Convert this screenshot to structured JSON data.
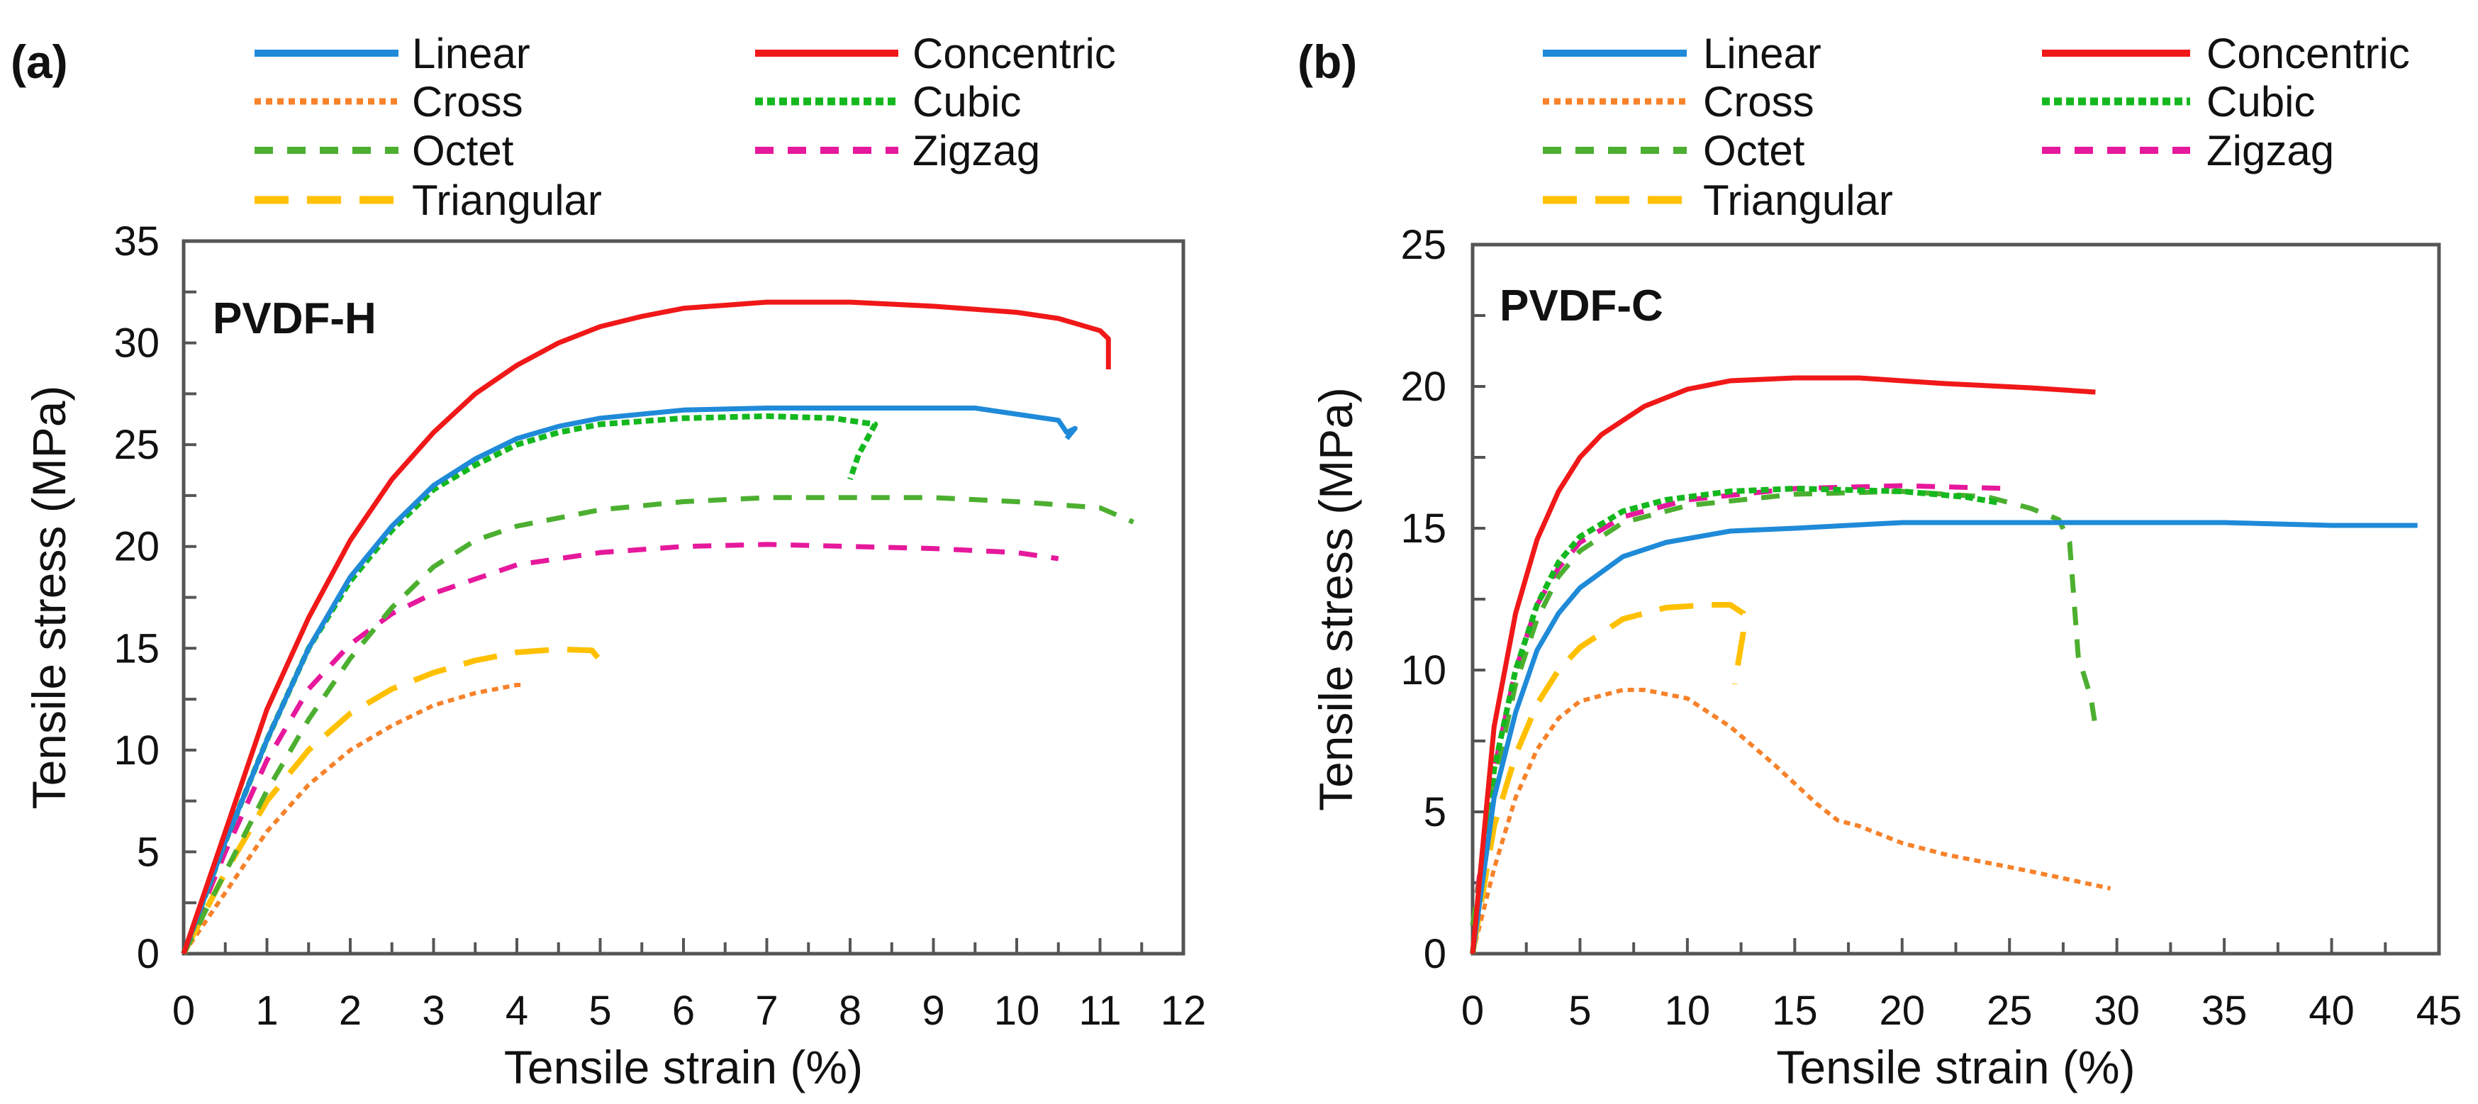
{
  "chart_data": [
    {
      "type": "line",
      "panel_label": "(a)",
      "title": "PVDF-H",
      "xlabel": "Tensile strain (%)",
      "ylabel": "Tensile stress (MPa)",
      "xlim": [
        0,
        12
      ],
      "ylim": [
        0,
        35
      ],
      "xticks": [
        0,
        1,
        2,
        3,
        4,
        5,
        6,
        7,
        8,
        9,
        10,
        11,
        12
      ],
      "yticks": [
        0,
        5,
        10,
        15,
        20,
        25,
        30,
        35
      ],
      "grid": false,
      "legend_placement": "top",
      "series": [
        {
          "name": "Linear",
          "color": "#1f8ad8",
          "style": "solid",
          "points": [
            [
              0,
              0
            ],
            [
              0.5,
              5.5
            ],
            [
              1,
              10.5
            ],
            [
              1.5,
              15
            ],
            [
              2,
              18.5
            ],
            [
              2.5,
              21
            ],
            [
              3,
              23
            ],
            [
              3.5,
              24.3
            ],
            [
              4,
              25.3
            ],
            [
              4.5,
              25.9
            ],
            [
              5,
              26.3
            ],
            [
              6,
              26.7
            ],
            [
              7,
              26.8
            ],
            [
              8,
              26.8
            ],
            [
              9.5,
              26.8
            ],
            [
              10,
              26.5
            ],
            [
              10.5,
              26.2
            ],
            [
              10.6,
              25.6
            ],
            [
              10.7,
              25.8
            ],
            [
              10.6,
              25.3
            ]
          ]
        },
        {
          "name": "Concentric",
          "color": "#f01818",
          "style": "solid",
          "points": [
            [
              0,
              0
            ],
            [
              0.5,
              6
            ],
            [
              1,
              12
            ],
            [
              1.5,
              16.5
            ],
            [
              2,
              20.3
            ],
            [
              2.5,
              23.3
            ],
            [
              3,
              25.6
            ],
            [
              3.5,
              27.5
            ],
            [
              4,
              28.9
            ],
            [
              4.5,
              30
            ],
            [
              5,
              30.8
            ],
            [
              5.5,
              31.3
            ],
            [
              6,
              31.7
            ],
            [
              7,
              32
            ],
            [
              8,
              32
            ],
            [
              9,
              31.8
            ],
            [
              10,
              31.5
            ],
            [
              10.5,
              31.2
            ],
            [
              11,
              30.6
            ],
            [
              11.1,
              30.2
            ],
            [
              11.1,
              28.7
            ]
          ]
        },
        {
          "name": "Cross",
          "color": "#f7822a",
          "style": "dot",
          "points": [
            [
              0,
              0
            ],
            [
              0.5,
              3
            ],
            [
              1,
              6
            ],
            [
              1.5,
              8.3
            ],
            [
              2,
              10
            ],
            [
              2.5,
              11.2
            ],
            [
              3,
              12.2
            ],
            [
              3.5,
              12.8
            ],
            [
              4,
              13.2
            ],
            [
              4.1,
              13.2
            ]
          ]
        },
        {
          "name": "Cubic",
          "color": "#14b81e",
          "style": "densedot",
          "points": [
            [
              0,
              0
            ],
            [
              0.5,
              5.5
            ],
            [
              1,
              10.5
            ],
            [
              1.5,
              15
            ],
            [
              2,
              18.3
            ],
            [
              2.5,
              20.8
            ],
            [
              3,
              22.8
            ],
            [
              3.5,
              24
            ],
            [
              4,
              25
            ],
            [
              4.5,
              25.6
            ],
            [
              5,
              26
            ],
            [
              6,
              26.3
            ],
            [
              7,
              26.4
            ],
            [
              7.8,
              26.3
            ],
            [
              8.3,
              26
            ],
            [
              8.1,
              24.5
            ],
            [
              8,
              23.3
            ]
          ]
        },
        {
          "name": "Octet",
          "color": "#4caf30",
          "style": "dash",
          "points": [
            [
              0,
              0
            ],
            [
              0.5,
              4
            ],
            [
              1,
              8
            ],
            [
              1.5,
              11.5
            ],
            [
              2,
              14.5
            ],
            [
              2.5,
              17
            ],
            [
              3,
              19
            ],
            [
              3.5,
              20.3
            ],
            [
              4,
              21
            ],
            [
              5,
              21.8
            ],
            [
              6,
              22.2
            ],
            [
              7,
              22.4
            ],
            [
              8,
              22.4
            ],
            [
              9,
              22.4
            ],
            [
              10,
              22.2
            ],
            [
              11,
              21.9
            ],
            [
              11.4,
              21.2
            ]
          ]
        },
        {
          "name": "Zigzag",
          "color": "#e6189c",
          "style": "dash",
          "points": [
            [
              0,
              0
            ],
            [
              0.5,
              5
            ],
            [
              1,
              9.5
            ],
            [
              1.5,
              13
            ],
            [
              2,
              15.2
            ],
            [
              2.5,
              16.7
            ],
            [
              3,
              17.7
            ],
            [
              4,
              19.1
            ],
            [
              5,
              19.7
            ],
            [
              6,
              20
            ],
            [
              7,
              20.1
            ],
            [
              8,
              20
            ],
            [
              9,
              19.9
            ],
            [
              10,
              19.7
            ],
            [
              10.5,
              19.4
            ]
          ]
        },
        {
          "name": "Triangular",
          "color": "#ffc000",
          "style": "longdash",
          "points": [
            [
              0,
              0
            ],
            [
              0.5,
              4
            ],
            [
              1,
              7.5
            ],
            [
              1.5,
              10
            ],
            [
              2,
              11.8
            ],
            [
              2.5,
              13
            ],
            [
              3,
              13.8
            ],
            [
              3.5,
              14.4
            ],
            [
              4,
              14.8
            ],
            [
              4.5,
              14.95
            ],
            [
              4.9,
              14.9
            ],
            [
              5,
              14.4
            ]
          ]
        }
      ]
    },
    {
      "type": "line",
      "panel_label": "(b)",
      "title": "PVDF-C",
      "xlabel": "Tensile strain (%)",
      "ylabel": "Tensile stress (MPa)",
      "xlim": [
        0,
        45
      ],
      "ylim": [
        0,
        25
      ],
      "xticks": [
        0,
        5,
        10,
        15,
        20,
        25,
        30,
        35,
        40,
        45
      ],
      "yticks": [
        0,
        5,
        10,
        15,
        20,
        25
      ],
      "grid": false,
      "legend_placement": "top",
      "series": [
        {
          "name": "Linear",
          "color": "#1f8ad8",
          "style": "solid",
          "points": [
            [
              0,
              0
            ],
            [
              1,
              5.5
            ],
            [
              2,
              8.5
            ],
            [
              3,
              10.7
            ],
            [
              4,
              12
            ],
            [
              5,
              12.9
            ],
            [
              7,
              14
            ],
            [
              9,
              14.5
            ],
            [
              12,
              14.9
            ],
            [
              15,
              15
            ],
            [
              20,
              15.2
            ],
            [
              30,
              15.2
            ],
            [
              35,
              15.2
            ],
            [
              40,
              15.1
            ],
            [
              44,
              15.1
            ]
          ]
        },
        {
          "name": "Concentric",
          "color": "#f01818",
          "style": "solid",
          "points": [
            [
              0,
              0
            ],
            [
              1,
              8
            ],
            [
              2,
              12
            ],
            [
              3,
              14.6
            ],
            [
              4,
              16.3
            ],
            [
              5,
              17.5
            ],
            [
              6,
              18.3
            ],
            [
              8,
              19.3
            ],
            [
              10,
              19.9
            ],
            [
              12,
              20.2
            ],
            [
              15,
              20.3
            ],
            [
              18,
              20.3
            ],
            [
              22,
              20.1
            ],
            [
              26,
              19.95
            ],
            [
              29,
              19.8
            ]
          ]
        },
        {
          "name": "Cross",
          "color": "#f7822a",
          "style": "dot",
          "points": [
            [
              0,
              0
            ],
            [
              1,
              3
            ],
            [
              2,
              5.5
            ],
            [
              3,
              7.2
            ],
            [
              4,
              8.3
            ],
            [
              5,
              8.9
            ],
            [
              7,
              9.3
            ],
            [
              8,
              9.3
            ],
            [
              10,
              9
            ],
            [
              12,
              8
            ],
            [
              14,
              6.7
            ],
            [
              16,
              5.3
            ],
            [
              17,
              4.7
            ],
            [
              18,
              4.5
            ],
            [
              20,
              3.9
            ],
            [
              22,
              3.5
            ],
            [
              26,
              2.9
            ],
            [
              29.7,
              2.3
            ]
          ]
        },
        {
          "name": "Cubic",
          "color": "#14b81e",
          "style": "densedot",
          "points": [
            [
              0,
              0
            ],
            [
              1,
              6.5
            ],
            [
              2,
              10
            ],
            [
              3,
              12.3
            ],
            [
              4,
              13.8
            ],
            [
              5,
              14.7
            ],
            [
              7,
              15.6
            ],
            [
              9,
              16
            ],
            [
              12,
              16.3
            ],
            [
              15,
              16.4
            ],
            [
              20,
              16.3
            ],
            [
              23,
              16.1
            ],
            [
              24.5,
              15.9
            ]
          ]
        },
        {
          "name": "Octet",
          "color": "#4caf30",
          "style": "dash",
          "points": [
            [
              0,
              1
            ],
            [
              1,
              6
            ],
            [
              2,
              9.5
            ],
            [
              3,
              11.8
            ],
            [
              4,
              13.3
            ],
            [
              5,
              14.2
            ],
            [
              7,
              15.2
            ],
            [
              10,
              15.8
            ],
            [
              15,
              16.2
            ],
            [
              20,
              16.3
            ],
            [
              24,
              16.1
            ],
            [
              26,
              15.7
            ],
            [
              27.3,
              15.3
            ],
            [
              27.8,
              14.5
            ],
            [
              28,
              12.5
            ],
            [
              28.2,
              10.5
            ],
            [
              28.8,
              9
            ],
            [
              29,
              8
            ]
          ]
        },
        {
          "name": "Zigzag",
          "color": "#e6189c",
          "style": "dash",
          "points": [
            [
              0,
              1
            ],
            [
              1,
              6.5
            ],
            [
              2,
              10
            ],
            [
              3,
              12.3
            ],
            [
              4,
              13.6
            ],
            [
              5,
              14.5
            ],
            [
              7,
              15.4
            ],
            [
              10,
              16
            ],
            [
              15,
              16.4
            ],
            [
              20,
              16.5
            ],
            [
              25,
              16.4
            ]
          ]
        },
        {
          "name": "Triangular",
          "color": "#ffc000",
          "style": "longdash",
          "points": [
            [
              0,
              0
            ],
            [
              1,
              4.5
            ],
            [
              2,
              7
            ],
            [
              3,
              8.8
            ],
            [
              4,
              10
            ],
            [
              5,
              10.8
            ],
            [
              7,
              11.8
            ],
            [
              9,
              12.2
            ],
            [
              11,
              12.3
            ],
            [
              12,
              12.3
            ],
            [
              12.6,
              12
            ],
            [
              12.6,
              11.3
            ],
            [
              12.2,
              9.5
            ]
          ]
        }
      ]
    }
  ]
}
